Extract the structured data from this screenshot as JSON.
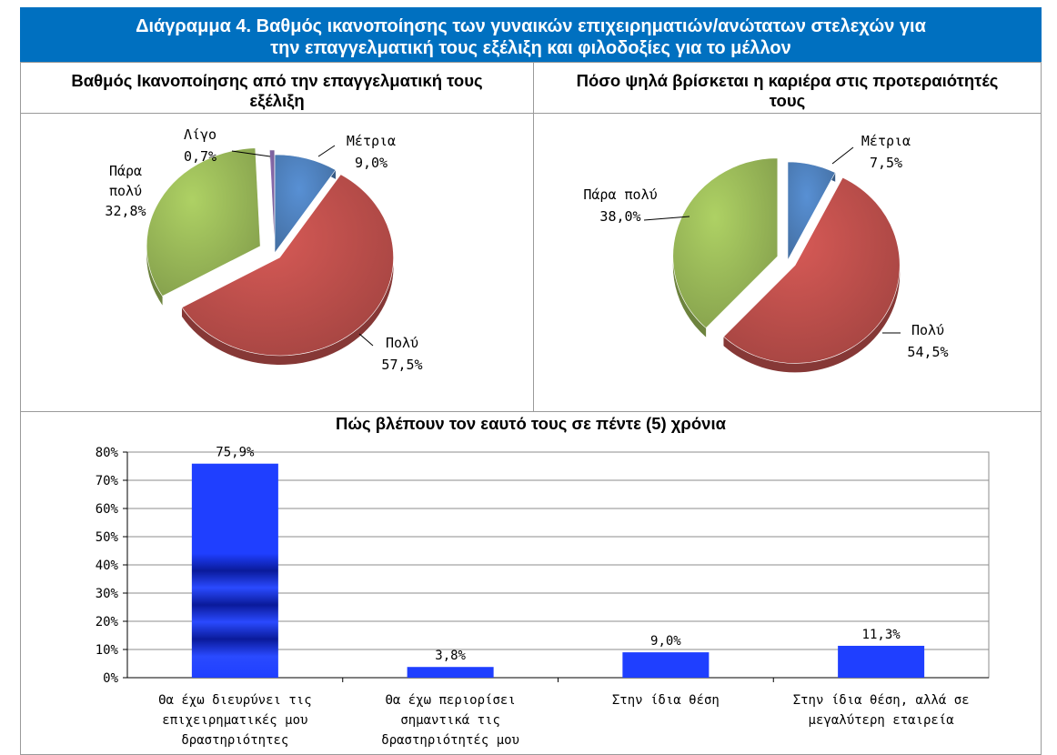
{
  "header": {
    "title_line1": "Διάγραμμα 4. Βαθμός ικανοποίησης των γυναικών επιχειρηματιών/ανώτατων στελεχών για",
    "title_line2": "την επαγγελματική τους εξέλιξη και φιλοδοξίες για το μέλλον",
    "background": "#0070c0"
  },
  "chart_data": [
    {
      "type": "pie",
      "title_line1": "Βαθμός Ικανοποίησης από την επαγγελματική τους",
      "title_line2": "εξέλιξη",
      "slices": [
        {
          "label": "Μέτρια",
          "value": 9.0,
          "value_text": "9,0%",
          "color": "#4f81bd"
        },
        {
          "label": "Πολύ",
          "value": 57.5,
          "value_text": "57,5%",
          "color": "#c0504d"
        },
        {
          "label": "Πάρα πολύ",
          "label_line1": "Πάρα",
          "label_line2": "πολύ",
          "value": 32.8,
          "value_text": "32,8%",
          "color": "#9bbb59"
        },
        {
          "label": "Λίγο",
          "value": 0.7,
          "value_text": "0,7%",
          "color": "#8064a2"
        }
      ]
    },
    {
      "type": "pie",
      "title_line1": "Πόσο ψηλά βρίσκεται η καριέρα στις προτεραιότητές",
      "title_line2": "τους",
      "slices": [
        {
          "label": "Μέτρια",
          "value": 7.5,
          "value_text": "7,5%",
          "color": "#4f81bd"
        },
        {
          "label": "Πολύ",
          "value": 54.5,
          "value_text": "54,5%",
          "color": "#c0504d"
        },
        {
          "label": "Πάρα πολύ",
          "value": 38.0,
          "value_text": "38,0%",
          "color": "#9bbb59"
        }
      ]
    },
    {
      "type": "bar",
      "title": "Πώς βλέπουν τον εαυτό τους σε πέντε (5) χρόνια",
      "ylim": [
        0,
        80
      ],
      "yticks": [
        "0%",
        "10%",
        "20%",
        "30%",
        "40%",
        "50%",
        "60%",
        "70%",
        "80%"
      ],
      "grid": true,
      "bar_color": "#1f3fff",
      "categories": [
        [
          "Θα έχω διευρύνει τις",
          "επιχειρηματικές μου",
          "δραστηριότητες"
        ],
        [
          "Θα έχω περιορίσει",
          "σημαντικά τις",
          "δραστηριότητές μου"
        ],
        [
          "Στην ίδια θέση"
        ],
        [
          "Στην ίδια θέση, αλλά σε",
          "μεγαλύτερη εταιρεία"
        ]
      ],
      "values": [
        75.9,
        3.8,
        9.0,
        11.3
      ],
      "value_labels": [
        "75,9%",
        "3,8%",
        "9,0%",
        "11,3%"
      ]
    }
  ]
}
